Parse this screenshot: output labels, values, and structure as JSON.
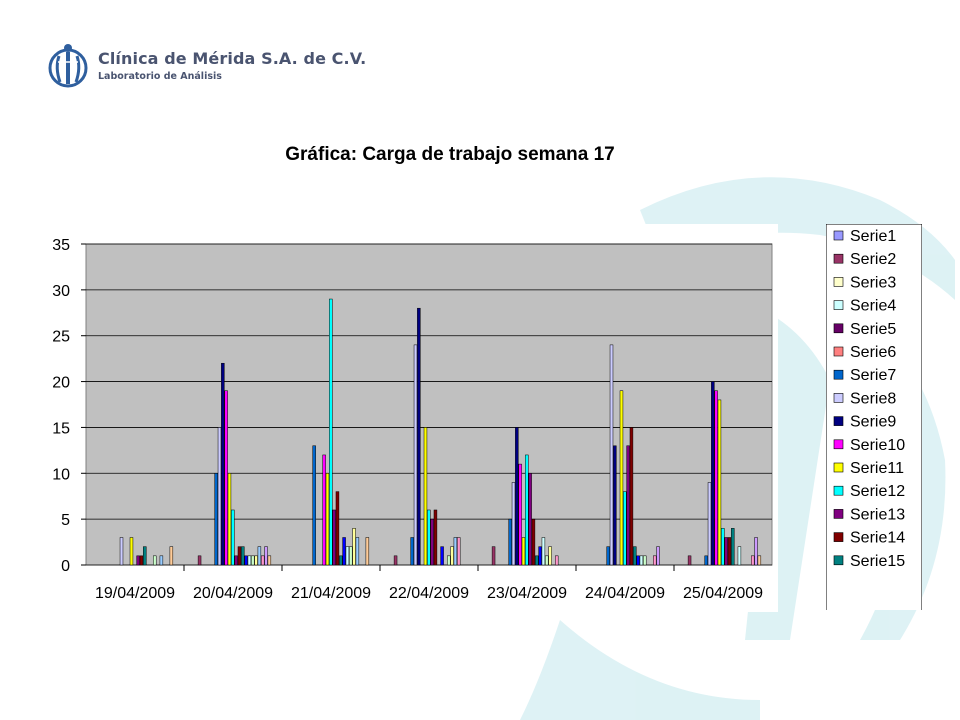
{
  "header": {
    "org_name": "Clínica de Mérida S.A. de C.V.",
    "org_subtitle": "Laboratorio de Análisis",
    "logo_icon": "clinic-logo-icon"
  },
  "colors": {
    "brand": "#2f5f9e",
    "watermark": "#d8f0f3",
    "plot_background": "#c0c0c0"
  },
  "chart_data": {
    "type": "bar",
    "title": "Gráfica: Carga de trabajo semana 17",
    "xlabel": "",
    "ylabel": "",
    "ylim": [
      0,
      35
    ],
    "yticks": [
      0,
      5,
      10,
      15,
      20,
      25,
      30,
      35
    ],
    "grid": true,
    "legend_position": "right",
    "categories": [
      "19/04/2009",
      "20/04/2009",
      "21/04/2009",
      "22/04/2009",
      "23/04/2009",
      "24/04/2009",
      "25/04/2009"
    ],
    "series": [
      {
        "name": "Serie1",
        "color": "#9999ff",
        "values": [
          0,
          0,
          0,
          0,
          0,
          0,
          0
        ]
      },
      {
        "name": "Serie2",
        "color": "#993366",
        "values": [
          0,
          1,
          0,
          1,
          2,
          0,
          1
        ]
      },
      {
        "name": "Serie3",
        "color": "#ffffcc",
        "values": [
          0,
          0,
          0,
          0,
          0,
          0,
          0
        ]
      },
      {
        "name": "Serie4",
        "color": "#ccffff",
        "values": [
          0,
          0,
          0,
          0,
          0,
          0,
          0
        ]
      },
      {
        "name": "Serie5",
        "color": "#660066",
        "values": [
          0,
          0,
          0,
          0,
          0,
          0,
          0
        ]
      },
      {
        "name": "Serie6",
        "color": "#ff8080",
        "values": [
          0,
          0,
          0,
          0,
          0,
          0,
          0
        ]
      },
      {
        "name": "Serie7",
        "color": "#0066cc",
        "values": [
          0,
          10,
          13,
          3,
          5,
          2,
          1
        ]
      },
      {
        "name": "Serie8",
        "color": "#ccccff",
        "values": [
          3,
          15,
          0,
          24,
          9,
          24,
          9
        ]
      },
      {
        "name": "Serie9",
        "color": "#000080",
        "values": [
          0,
          22,
          0,
          28,
          15,
          13,
          20
        ]
      },
      {
        "name": "Serie10",
        "color": "#ff00ff",
        "values": [
          0,
          19,
          12,
          0,
          11,
          0,
          19
        ]
      },
      {
        "name": "Serie11",
        "color": "#ffff00",
        "values": [
          3,
          10,
          10,
          15,
          3,
          19,
          18
        ]
      },
      {
        "name": "Serie12",
        "color": "#00ffff",
        "values": [
          0,
          6,
          29,
          6,
          12,
          8,
          4
        ]
      },
      {
        "name": "Serie13",
        "color": "#800080",
        "values": [
          1,
          1,
          6,
          5,
          10,
          13,
          3
        ]
      },
      {
        "name": "Serie14",
        "color": "#800000",
        "values": [
          1,
          2,
          8,
          6,
          5,
          15,
          3
        ]
      },
      {
        "name": "Serie15",
        "color": "#008080",
        "values": [
          2,
          2,
          1,
          0,
          1,
          2,
          4
        ]
      },
      {
        "name": "",
        "color": "#0000ff",
        "values": [
          0,
          1,
          3,
          2,
          2,
          1,
          0
        ]
      },
      {
        "name": "",
        "color": "#ccffff",
        "values": [
          0,
          1,
          2,
          0,
          3,
          1,
          2
        ]
      },
      {
        "name": "",
        "color": "#ccffcc",
        "values": [
          1,
          1,
          2,
          1,
          1,
          1,
          0
        ]
      },
      {
        "name": "",
        "color": "#ffff99",
        "values": [
          0,
          1,
          4,
          2,
          2,
          0,
          0
        ]
      },
      {
        "name": "",
        "color": "#99ccff",
        "values": [
          1,
          2,
          3,
          3,
          0,
          0,
          0
        ]
      },
      {
        "name": "",
        "color": "#ff99cc",
        "values": [
          0,
          1,
          0,
          3,
          1,
          1,
          1
        ]
      },
      {
        "name": "",
        "color": "#cc99ff",
        "values": [
          0,
          2,
          0,
          0,
          0,
          2,
          3
        ]
      },
      {
        "name": "",
        "color": "#ffcc99",
        "values": [
          2,
          1,
          3,
          0,
          0,
          0,
          1
        ]
      }
    ]
  }
}
